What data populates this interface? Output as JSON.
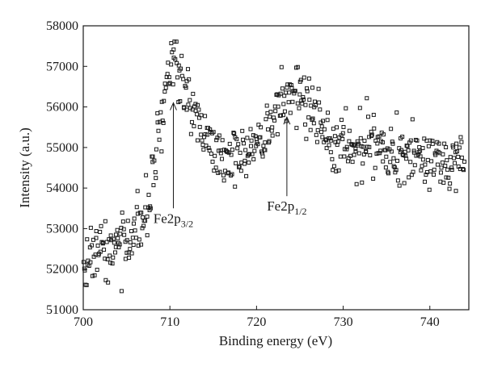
{
  "chart_data": {
    "type": "scatter",
    "title": "",
    "xlabel": "Binding energy (eV)",
    "ylabel": "Intensity (a.u.)",
    "xlim": [
      700,
      744.5
    ],
    "ylim": [
      51000,
      58000
    ],
    "xticks": [
      700,
      710,
      720,
      730,
      740
    ],
    "yticks": [
      51000,
      52000,
      53000,
      54000,
      55000,
      56000,
      57000,
      58000
    ],
    "xtick_labels": [
      "700",
      "710",
      "720",
      "730",
      "740"
    ],
    "ytick_labels": [
      "51000",
      "52000",
      "53000",
      "54000",
      "55000",
      "56000",
      "57000",
      "58000"
    ],
    "grid": false,
    "marker": "open-square",
    "marker_color": "#1a1a1a",
    "annotations": [
      {
        "main": "Fe2p",
        "sub": "3/2",
        "x": 710.4,
        "arrow_from_y": 53500,
        "arrow_to_y": 56100
      },
      {
        "main": "Fe2p",
        "sub": "1/2",
        "x": 723.5,
        "arrow_from_y": 53800,
        "arrow_to_y": 55750
      }
    ],
    "profile_x": [
      700,
      701,
      702,
      703,
      704,
      705,
      706,
      706.8,
      707.5,
      708,
      708.5,
      709,
      709.5,
      710,
      710.5,
      711,
      711.5,
      712,
      712.5,
      713,
      713.5,
      714,
      715,
      716,
      717,
      718,
      719,
      720,
      721,
      722,
      723,
      724,
      725,
      726,
      727,
      728,
      729,
      730,
      731,
      732,
      733,
      734,
      735,
      736,
      737,
      738,
      739,
      740,
      741,
      742,
      743,
      744
    ],
    "profile_y": [
      52300,
      52500,
      52600,
      52500,
      52600,
      52800,
      52900,
      53100,
      53500,
      54200,
      55000,
      55700,
      56400,
      57100,
      57300,
      56900,
      56500,
      56200,
      55900,
      55700,
      55500,
      55300,
      55000,
      54900,
      54800,
      54800,
      54900,
      55100,
      55300,
      55600,
      56000,
      56400,
      56300,
      56000,
      55700,
      55400,
      55200,
      55000,
      55000,
      55100,
      55200,
      55100,
      55000,
      54900,
      54800,
      54700,
      54700,
      54700,
      54700,
      54600,
      54600,
      54500
    ],
    "noise_sd": 380,
    "n_points": 560,
    "random_seed": 20240611
  }
}
